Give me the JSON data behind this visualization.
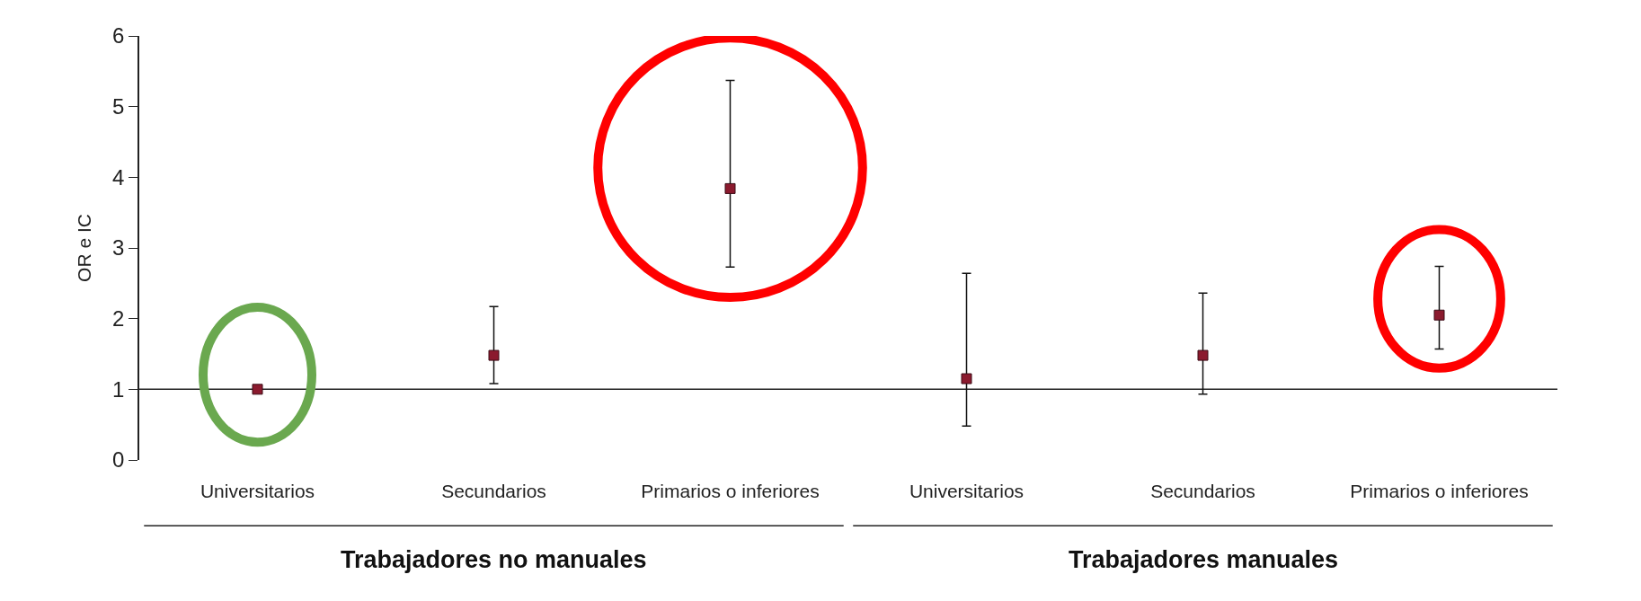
{
  "chart_data": {
    "type": "scatter",
    "ylabel": "OR e IC",
    "categories": [
      "Universitarios",
      "Secundarios",
      "Primarios o inferiores",
      "Universitarios",
      "Secundarios",
      "Primarios o inferiores"
    ],
    "series": [
      {
        "color": "#8b1a2e",
        "values": [
          1.0,
          1.48,
          3.84,
          1.15,
          1.48,
          2.05
        ],
        "errors": [
          null,
          [
            1.08,
            2.17
          ],
          [
            2.73,
            5.37
          ],
          [
            0.48,
            2.64
          ],
          [
            0.93,
            2.36
          ],
          [
            1.57,
            2.74
          ]
        ]
      }
    ],
    "annotations": [
      "Trabajadores no manuales",
      "Trabajadores manuales"
    ],
    "ylim": [
      0,
      6
    ],
    "yticks": [
      0,
      1,
      2,
      3,
      4,
      5,
      6
    ],
    "ref_lines": [
      {
        "axis": "y",
        "value": 1
      }
    ],
    "marker": "square"
  }
}
